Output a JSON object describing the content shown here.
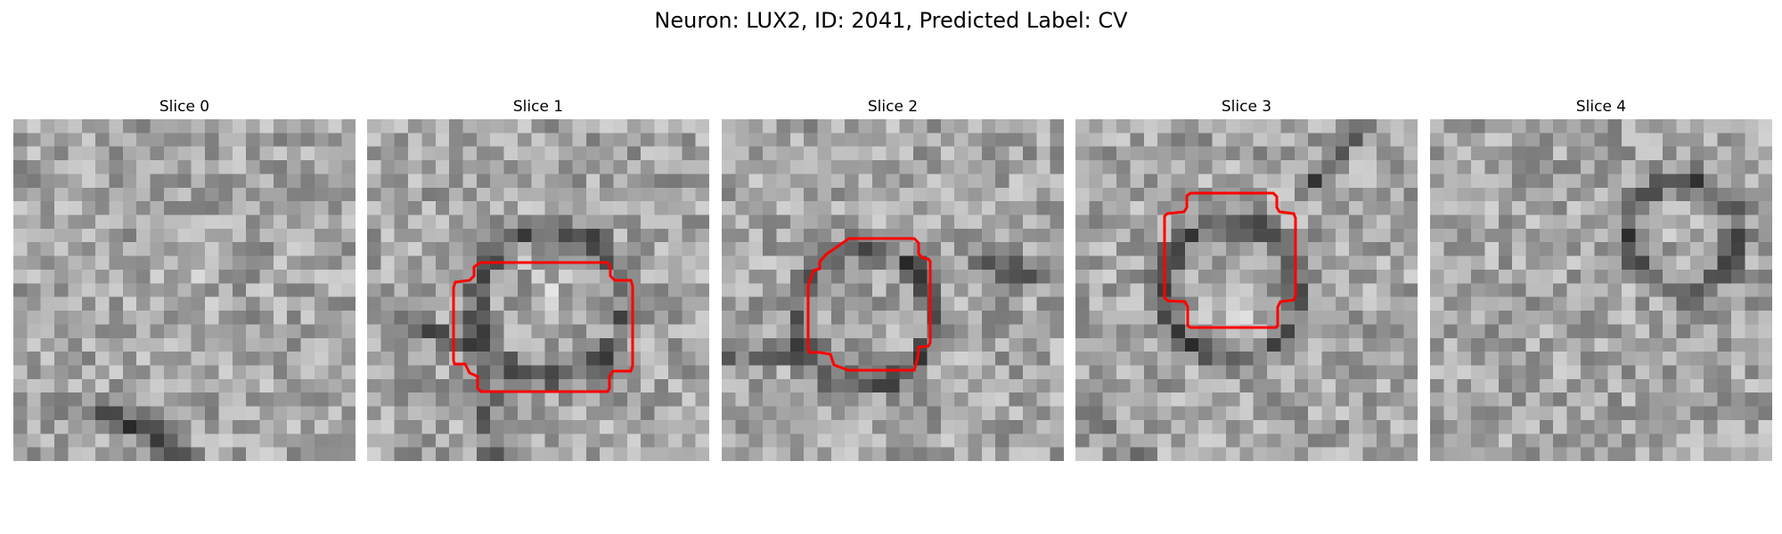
{
  "title": "Neuron: LUX2, ID: 2041, Predicted Label: CV",
  "panels": [
    {
      "label": "Slice 0",
      "has_contour": false
    },
    {
      "label": "Slice 1",
      "has_contour": true
    },
    {
      "label": "Slice 2",
      "has_contour": true
    },
    {
      "label": "Slice 3",
      "has_contour": true
    },
    {
      "label": "Slice 4",
      "has_contour": false
    }
  ],
  "colors": {
    "contour": "#ff0000",
    "background": "#ffffff"
  },
  "colormap": "gray"
}
